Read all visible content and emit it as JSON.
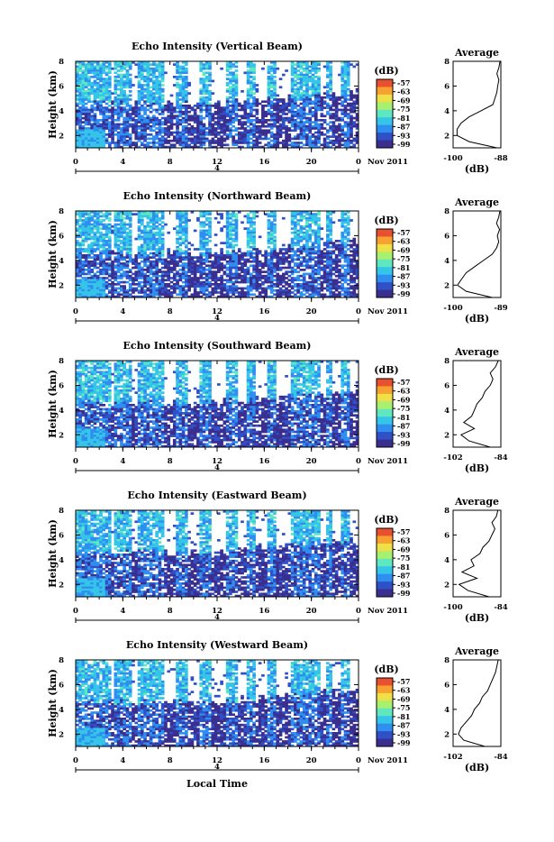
{
  "figure": {
    "xlabel": "Local Time",
    "ylabel": "Height (km)",
    "date_label": "Nov 2011",
    "date_day": "4",
    "x_ticks": [
      "0",
      "4",
      "8",
      "12",
      "16",
      "20",
      "0"
    ],
    "y_ticks": [
      "2",
      "4",
      "6",
      "8"
    ],
    "colorbar_unit": "(dB)",
    "colorbar_ticks": [
      "-57",
      "-63",
      "-69",
      "-75",
      "-81",
      "-87",
      "-93",
      "-99"
    ],
    "profile_title": "Average",
    "profile_xlabel": "(dB)",
    "profile_y_ticks": [
      "2",
      "4",
      "6",
      "8"
    ]
  },
  "colors": {
    "scale": [
      "#3a2f8e",
      "#3050c8",
      "#2f8ff0",
      "#35c5e8",
      "#5fe8c0",
      "#a8f070",
      "#f0e048",
      "#f8a030",
      "#e85030"
    ],
    "blank": "#ffffff"
  },
  "chart_data": [
    {
      "type": "heatmap",
      "title": "Echo Intensity (Vertical Beam)",
      "xlabel": "Local Time",
      "ylabel": "Height (km)",
      "xlim": [
        0,
        24
      ],
      "ylim": [
        1,
        8
      ],
      "clim": [
        -99,
        -57
      ],
      "profile": {
        "title": "Average",
        "xlabel": "(dB)",
        "xlim": [
          -100,
          -88
        ],
        "x_tick_labels": [
          "-100",
          "-88"
        ],
        "heights": [
          1.0,
          1.5,
          2.0,
          2.5,
          3.0,
          3.5,
          4.0,
          4.5,
          5.0,
          5.5,
          6.0,
          6.5,
          7.0,
          7.5,
          8.0
        ],
        "values": [
          -89,
          -96,
          -99,
          -99,
          -98,
          -96,
          -93,
          -90,
          -89.5,
          -89,
          -88.8,
          -88.5,
          -89,
          -88.5,
          -88.2
        ]
      }
    },
    {
      "type": "heatmap",
      "title": "Echo Intensity (Northward Beam)",
      "xlabel": "Local Time",
      "ylabel": "Height (km)",
      "xlim": [
        0,
        24
      ],
      "ylim": [
        1,
        8
      ],
      "clim": [
        -99,
        -57
      ],
      "profile": {
        "title": "Average",
        "xlabel": "(dB)",
        "xlim": [
          -100,
          -89
        ],
        "x_tick_labels": [
          "-100",
          "-89"
        ],
        "heights": [
          1.0,
          1.5,
          2.0,
          2.5,
          3.0,
          3.5,
          4.0,
          4.5,
          5.0,
          5.5,
          6.0,
          6.5,
          7.0,
          7.5,
          8.0
        ],
        "values": [
          -91,
          -97,
          -99,
          -98,
          -97,
          -95,
          -93,
          -91,
          -90,
          -89.5,
          -89.8,
          -89.3,
          -90,
          -89.5,
          -89.2
        ]
      }
    },
    {
      "type": "heatmap",
      "title": "Echo Intensity (Southward Beam)",
      "xlabel": "Local Time",
      "ylabel": "Height (km)",
      "xlim": [
        0,
        24
      ],
      "ylim": [
        1,
        8
      ],
      "clim": [
        -99,
        -57
      ],
      "profile": {
        "title": "Average",
        "xlabel": "(dB)",
        "xlim": [
          -102,
          -84
        ],
        "x_tick_labels": [
          "-102",
          "-84"
        ],
        "heights": [
          1.0,
          1.5,
          2.0,
          2.5,
          3.0,
          3.5,
          4.0,
          4.5,
          5.0,
          5.5,
          6.0,
          6.5,
          7.0,
          7.5,
          8.0
        ],
        "values": [
          -88,
          -96,
          -99,
          -94,
          -98,
          -95,
          -94,
          -93,
          -91,
          -90,
          -88,
          -87,
          -88,
          -86,
          -85
        ]
      }
    },
    {
      "type": "heatmap",
      "title": "Echo Intensity (Eastward Beam)",
      "xlabel": "Local Time",
      "ylabel": "Height (km)",
      "xlim": [
        0,
        24
      ],
      "ylim": [
        1,
        8
      ],
      "clim": [
        -99,
        -57
      ],
      "profile": {
        "title": "Average",
        "xlabel": "(dB)",
        "xlim": [
          -100,
          -84
        ],
        "x_tick_labels": [
          "-100",
          "-84"
        ],
        "heights": [
          1.0,
          1.5,
          2.0,
          2.5,
          3.0,
          3.5,
          4.0,
          4.5,
          5.0,
          5.5,
          6.0,
          6.5,
          7.0,
          7.5,
          8.0
        ],
        "values": [
          -88,
          -95,
          -98,
          -92,
          -97,
          -93,
          -94,
          -91,
          -90,
          -88,
          -87,
          -86,
          -87,
          -85.5,
          -85
        ]
      }
    },
    {
      "type": "heatmap",
      "title": "Echo Intensity (Westward Beam)",
      "xlabel": "Local Time",
      "ylabel": "Height (km)",
      "xlim": [
        0,
        24
      ],
      "ylim": [
        1,
        8
      ],
      "clim": [
        -99,
        -57
      ],
      "profile": {
        "title": "Average",
        "xlabel": "(dB)",
        "xlim": [
          -102,
          -84
        ],
        "x_tick_labels": [
          "-102",
          "-84"
        ],
        "heights": [
          1.0,
          1.5,
          2.0,
          2.5,
          3.0,
          3.5,
          4.0,
          4.5,
          5.0,
          5.5,
          6.0,
          6.5,
          7.0,
          7.5,
          8.0
        ],
        "values": [
          -90,
          -98,
          -100,
          -99,
          -97,
          -95,
          -94,
          -92,
          -91,
          -89,
          -88,
          -87,
          -86,
          -85.5,
          -85
        ]
      }
    }
  ]
}
